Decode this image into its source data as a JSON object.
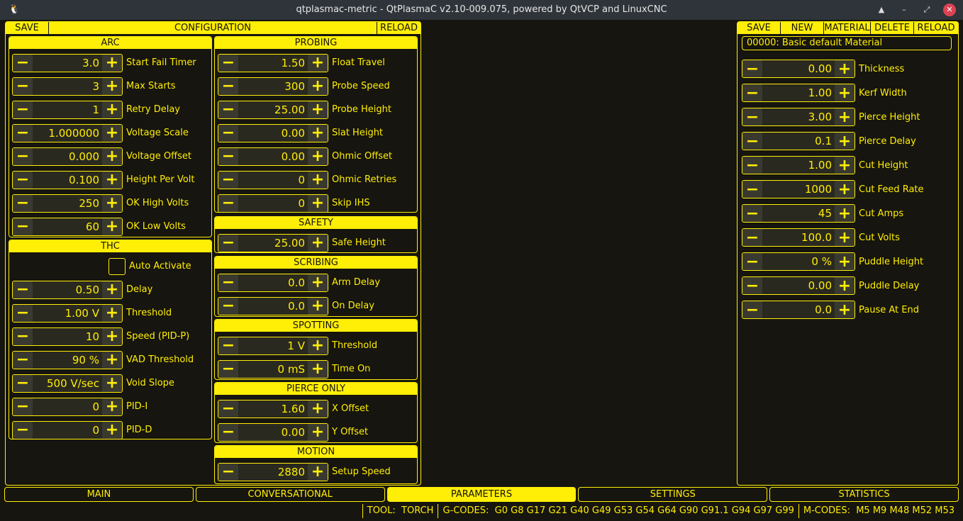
{
  "window": {
    "title": "qtplasmac-metric - QtPlasmaC v2.10-009.075, powered by QtVCP and LinuxCNC"
  },
  "colors": {
    "accent": "#ffee06",
    "background": "#16150f"
  },
  "config": {
    "save": "SAVE",
    "title": "CONFIGURATION",
    "reload": "RELOAD",
    "arc": {
      "title": "ARC",
      "rows": [
        [
          "3.0",
          "Start Fail Timer"
        ],
        [
          "3",
          "Max Starts"
        ],
        [
          "1",
          "Retry Delay"
        ],
        [
          "1.000000",
          "Voltage Scale"
        ],
        [
          "0.000",
          "Voltage Offset"
        ],
        [
          "0.100",
          "Height Per Volt"
        ],
        [
          "250",
          "OK High Volts"
        ],
        [
          "60",
          "OK Low Volts"
        ]
      ]
    },
    "thc": {
      "title": "THC",
      "auto_activate": "Auto Activate",
      "auto_activate_checked": false,
      "rows": [
        [
          "0.50",
          "Delay"
        ],
        [
          "1.00 V",
          "Threshold"
        ],
        [
          "10",
          "Speed (PID-P)"
        ],
        [
          "90 %",
          "VAD Threshold"
        ],
        [
          "500 V/sec",
          "Void Slope"
        ],
        [
          "0",
          "PID-I"
        ],
        [
          "0",
          "PID-D"
        ]
      ]
    },
    "probing": {
      "title": "PROBING",
      "rows": [
        [
          "1.50",
          "Float Travel"
        ],
        [
          "300",
          "Probe Speed"
        ],
        [
          "25.00",
          "Probe Height"
        ],
        [
          "0.00",
          "Slat Height"
        ],
        [
          "0.00",
          "Ohmic Offset"
        ],
        [
          "0",
          "Ohmic Retries"
        ],
        [
          "0",
          "Skip IHS"
        ]
      ]
    },
    "safety": {
      "title": "SAFETY",
      "rows": [
        [
          "25.00",
          "Safe Height"
        ]
      ]
    },
    "scribing": {
      "title": "SCRIBING",
      "rows": [
        [
          "0.0",
          "Arm Delay"
        ],
        [
          "0.0",
          "On Delay"
        ]
      ]
    },
    "spotting": {
      "title": "SPOTTING",
      "rows": [
        [
          "1 V",
          "Threshold"
        ],
        [
          "0 mS",
          "Time On"
        ]
      ]
    },
    "pierce_only": {
      "title": "PIERCE ONLY",
      "rows": [
        [
          "1.60",
          "X Offset"
        ],
        [
          "0.00",
          "Y Offset"
        ]
      ]
    },
    "motion": {
      "title": "MOTION",
      "rows": [
        [
          "2880",
          "Setup Speed"
        ]
      ]
    }
  },
  "material": {
    "buttons": [
      "SAVE",
      "NEW",
      "MATERIAL",
      "DELETE",
      "RELOAD"
    ],
    "selected": "00000: Basic default Material",
    "rows": [
      [
        "0.00",
        "Thickness"
      ],
      [
        "1.00",
        "Kerf Width"
      ],
      [
        "3.00",
        "Pierce Height"
      ],
      [
        "0.1",
        "Pierce Delay"
      ],
      [
        "1.00",
        "Cut Height"
      ],
      [
        "1000",
        "Cut Feed Rate"
      ],
      [
        "45",
        "Cut Amps"
      ],
      [
        "100.0",
        "Cut Volts"
      ],
      [
        "0 %",
        "Puddle Height"
      ],
      [
        "0.00",
        "Puddle Delay"
      ],
      [
        "0.0",
        "Pause At End"
      ]
    ]
  },
  "tabs": [
    {
      "label": "MAIN"
    },
    {
      "label": "CONVERSATIONAL"
    },
    {
      "label": "PARAMETERS",
      "active": true
    },
    {
      "label": "SETTINGS"
    },
    {
      "label": "STATISTICS"
    }
  ],
  "status": {
    "tool_label": "TOOL:",
    "tool": "TORCH",
    "gcodes_label": "G-CODES:",
    "gcodes": "G0 G8 G17 G21 G40 G49 G53 G54 G64 G90 G91.1 G94 G97 G99",
    "mcodes_label": "M-CODES:",
    "mcodes": "M5 M9 M48 M52 M53"
  }
}
